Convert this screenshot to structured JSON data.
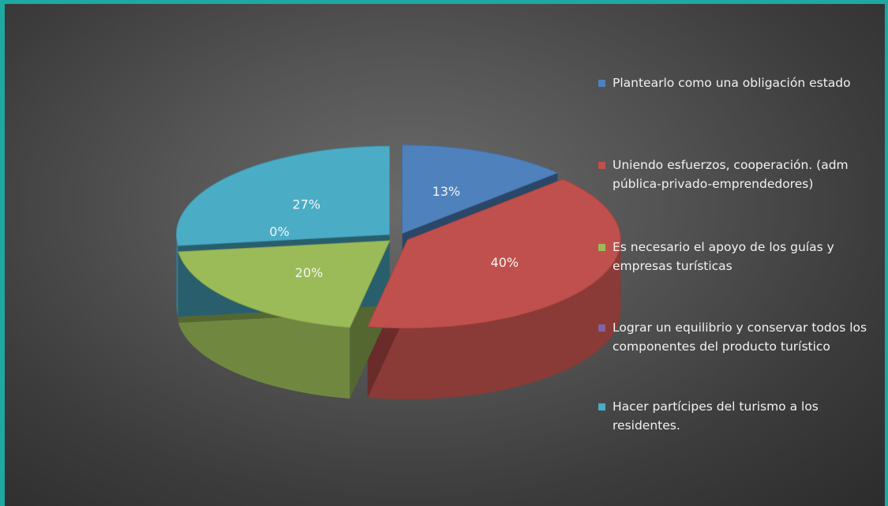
{
  "chart_data": {
    "type": "pie",
    "categories": [
      "Plantearlo como una obligación estado",
      "Uniendo esfuerzos, cooperación. (adm pública-privado-emprendedores)",
      "Es necesario el apoyo de los guías y empresas turísticas",
      "Lograr un equilibrio y conservar todos los componentes del producto turístico",
      "Hacer partícipes del turismo a los residentes."
    ],
    "values": [
      13,
      40,
      20,
      0,
      27
    ],
    "data_labels": [
      "13%",
      "40%",
      "20%",
      "0%",
      "27%"
    ],
    "colors": [
      "#4f81bd",
      "#c0504d",
      "#9bbb59",
      "#8064a2",
      "#4bacc6"
    ],
    "legend_placement": "right",
    "exploded": true,
    "three_d": true
  }
}
